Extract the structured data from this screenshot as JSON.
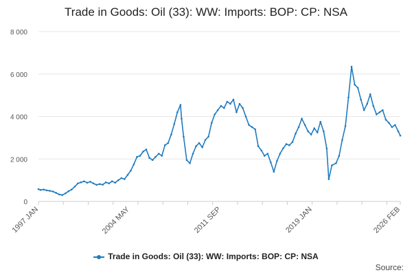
{
  "chart_data": {
    "type": "line",
    "title": "Trade in Goods: Oil (33): WW: Imports: BOP: CP: NSA",
    "xlabel": "",
    "ylabel": "",
    "ylim": [
      0,
      8000
    ],
    "y_ticks": [
      0,
      2000,
      4000,
      6000,
      8000
    ],
    "y_tick_labels": [
      "0",
      "2 000",
      "4 000",
      "6 000",
      "8 000"
    ],
    "x_tick_labels": [
      "1997 JAN",
      "2004 MAY",
      "2011 SEP",
      "2019 JAN",
      "2026 FEB"
    ],
    "x_tick_dates": [
      "1997-01",
      "2004-05",
      "2011-09",
      "2019-01",
      "2026-02"
    ],
    "x_range": [
      "1997-01",
      "2026-02"
    ],
    "grid": "horizontal",
    "legend_position": "bottom",
    "colors": {
      "series": "#1f7bbf",
      "grid": "#e6e6e6",
      "axis": "#cccccc"
    },
    "series": [
      {
        "name": "Trade in Goods: Oil (33): WW: Imports: BOP: CP: NSA",
        "x": [
          "1997-01",
          "1997-03",
          "1997-06",
          "1997-09",
          "1997-12",
          "1998-03",
          "1998-06",
          "1998-09",
          "1998-12",
          "1999-03",
          "1999-06",
          "1999-09",
          "1999-12",
          "2000-03",
          "2000-06",
          "2000-09",
          "2000-12",
          "2001-03",
          "2001-06",
          "2001-09",
          "2001-12",
          "2002-03",
          "2002-06",
          "2002-09",
          "2002-12",
          "2003-03",
          "2003-06",
          "2003-09",
          "2003-12",
          "2004-03",
          "2004-06",
          "2004-09",
          "2004-12",
          "2005-03",
          "2005-06",
          "2005-09",
          "2005-12",
          "2006-03",
          "2006-06",
          "2006-09",
          "2006-12",
          "2007-03",
          "2007-06",
          "2007-09",
          "2007-12",
          "2008-03",
          "2008-06",
          "2008-07",
          "2008-09",
          "2008-12",
          "2009-03",
          "2009-06",
          "2009-09",
          "2009-12",
          "2010-03",
          "2010-06",
          "2010-09",
          "2010-12",
          "2011-03",
          "2011-06",
          "2011-09",
          "2011-12",
          "2012-03",
          "2012-06",
          "2012-09",
          "2012-12",
          "2013-03",
          "2013-06",
          "2013-09",
          "2013-12",
          "2014-03",
          "2014-06",
          "2014-09",
          "2014-12",
          "2015-03",
          "2015-06",
          "2015-09",
          "2015-12",
          "2016-03",
          "2016-06",
          "2016-09",
          "2016-12",
          "2017-03",
          "2017-06",
          "2017-09",
          "2017-12",
          "2018-03",
          "2018-06",
          "2018-09",
          "2018-12",
          "2019-03",
          "2019-06",
          "2019-09",
          "2019-12",
          "2020-03",
          "2020-05",
          "2020-08",
          "2020-12",
          "2021-03",
          "2021-06",
          "2021-09",
          "2021-12",
          "2022-03",
          "2022-06",
          "2022-09",
          "2022-12",
          "2023-03",
          "2023-06",
          "2023-09",
          "2023-12",
          "2024-03",
          "2024-06",
          "2024-09",
          "2024-12",
          "2025-03",
          "2025-06",
          "2025-09",
          "2025-12",
          "2026-02"
        ],
        "values": [
          580,
          540,
          560,
          520,
          500,
          470,
          400,
          330,
          300,
          380,
          480,
          560,
          700,
          850,
          900,
          950,
          880,
          930,
          850,
          780,
          820,
          790,
          900,
          850,
          950,
          880,
          1000,
          1100,
          1050,
          1250,
          1450,
          1750,
          2100,
          2150,
          2350,
          2450,
          2050,
          1950,
          2100,
          2250,
          2150,
          2650,
          2750,
          3150,
          3650,
          4200,
          4550,
          3900,
          3050,
          1950,
          1800,
          2250,
          2600,
          2750,
          2550,
          2900,
          3050,
          3700,
          4100,
          4300,
          4500,
          4400,
          4700,
          4600,
          4800,
          4200,
          4600,
          4400,
          4000,
          3600,
          3500,
          3400,
          2600,
          2400,
          2150,
          2250,
          1850,
          1400,
          1900,
          2250,
          2500,
          2700,
          2650,
          2800,
          3200,
          3500,
          3900,
          3600,
          3300,
          3150,
          3450,
          3250,
          3750,
          3300,
          2500,
          1050,
          1700,
          1800,
          2150,
          2900,
          3550,
          4900,
          6350,
          5500,
          5350,
          4800,
          4300,
          4600,
          5050,
          4500,
          4100,
          4200,
          4300,
          3850,
          3700,
          3500,
          3600,
          3300,
          3100
        ]
      }
    ]
  },
  "footer": {
    "source_label": "Source:"
  }
}
